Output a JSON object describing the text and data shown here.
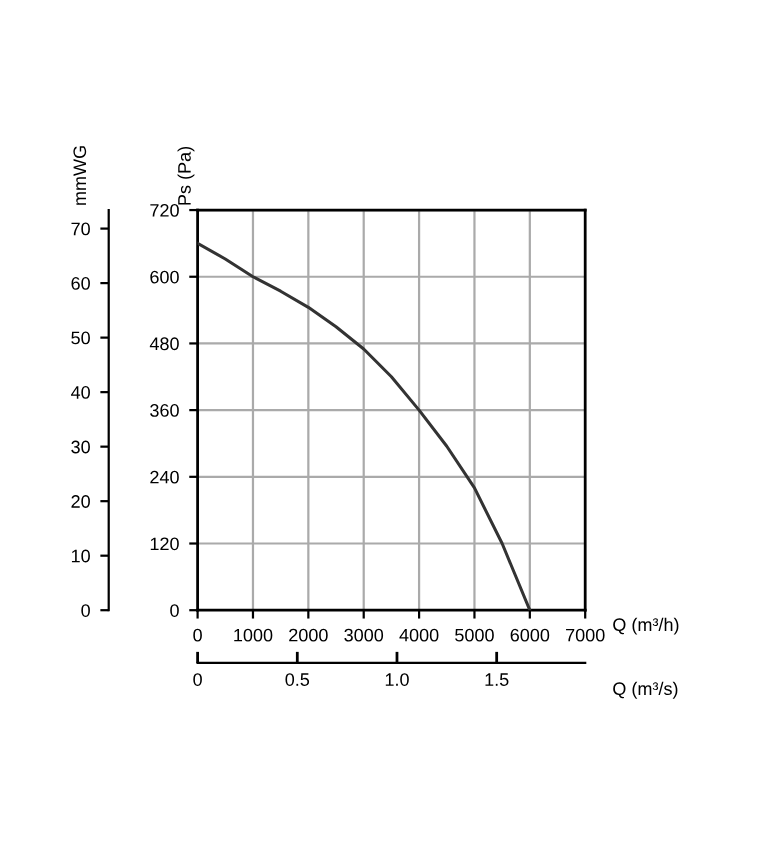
{
  "chart_data": {
    "type": "line",
    "xlabel": "Q (m³/h)",
    "ylabel": "Ps (Pa)",
    "y2label": "mmWG",
    "x2label": "Q (m³/s)",
    "x": [
      0,
      500,
      1000,
      1500,
      2000,
      2500,
      3000,
      3500,
      4000,
      4500,
      5000,
      5500,
      6000
    ],
    "series": [
      {
        "color": "#333333",
        "values": [
          660,
          632,
          600,
          574,
          545,
          510,
          470,
          420,
          360,
          295,
          220,
          120,
          0
        ]
      }
    ],
    "xlim": [
      0,
      7000
    ],
    "xticks": [
      0,
      1000,
      2000,
      3000,
      4000,
      5000,
      6000,
      7000
    ],
    "ylim": [
      0,
      720
    ],
    "yticks": [
      0,
      120,
      240,
      360,
      480,
      600,
      720
    ],
    "y2lim": [
      0,
      73.4
    ],
    "y2ticks": [
      0,
      10,
      20,
      30,
      40,
      50,
      60,
      70
    ],
    "x2lim": [
      0,
      1.944
    ],
    "x2ticks": [
      0,
      0.5,
      {
        "value": 1.0,
        "label": "1.0"
      },
      1.5
    ],
    "grid": true,
    "line_style": "solid",
    "marker": "none"
  }
}
